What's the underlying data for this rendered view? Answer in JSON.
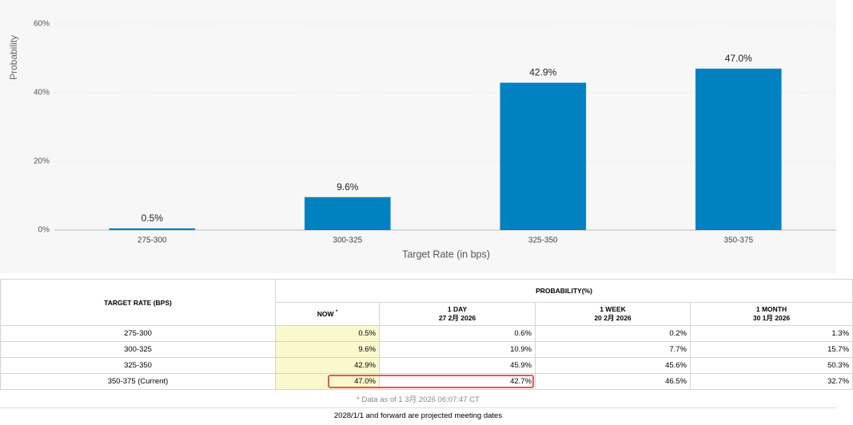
{
  "chart_data": {
    "type": "bar",
    "y_label": "Probability",
    "x_label": "Target Rate (in bps)",
    "categories": [
      "275-300",
      "300-325",
      "325-350",
      "350-375"
    ],
    "values": [
      0.5,
      9.6,
      42.9,
      47.0
    ],
    "value_labels": [
      "0.5%",
      "9.6%",
      "42.9%",
      "47.0%"
    ],
    "color": "#0082c1",
    "ylim": [
      0,
      60
    ],
    "yticks": [
      {
        "value": 0,
        "label": "0%"
      },
      {
        "value": 20,
        "label": "20%"
      },
      {
        "value": 40,
        "label": "40%"
      },
      {
        "value": 60,
        "label": "60%"
      }
    ],
    "grid": true
  },
  "table": {
    "first_header": "TARGET RATE (BPS)",
    "group_header": "PROBABILITY(%)",
    "columns": [
      {
        "label": "NOW",
        "note": "*"
      },
      {
        "label": "1 DAY",
        "date": "27 2月 2026"
      },
      {
        "label": "1 WEEK",
        "date": "20 2月 2026"
      },
      {
        "label": "1 MONTH",
        "date": "30 1月 2026"
      }
    ],
    "rows": [
      [
        "275-300",
        "0.5%",
        "0.6%",
        "0.2%",
        "1.3%"
      ],
      [
        "300-325",
        "9.6%",
        "10.9%",
        "7.7%",
        "15.7%"
      ],
      [
        "325-350",
        "42.9%",
        "45.9%",
        "45.6%",
        "50.3%"
      ],
      [
        "350-375 (Current)",
        "47.0%",
        "42.7%",
        "46.5%",
        "32.7%"
      ]
    ],
    "footnote": "* Data as of 1 3月 2026 06:07:47 CT",
    "footer": "2028/1/1 and forward are projected meeting dates"
  }
}
